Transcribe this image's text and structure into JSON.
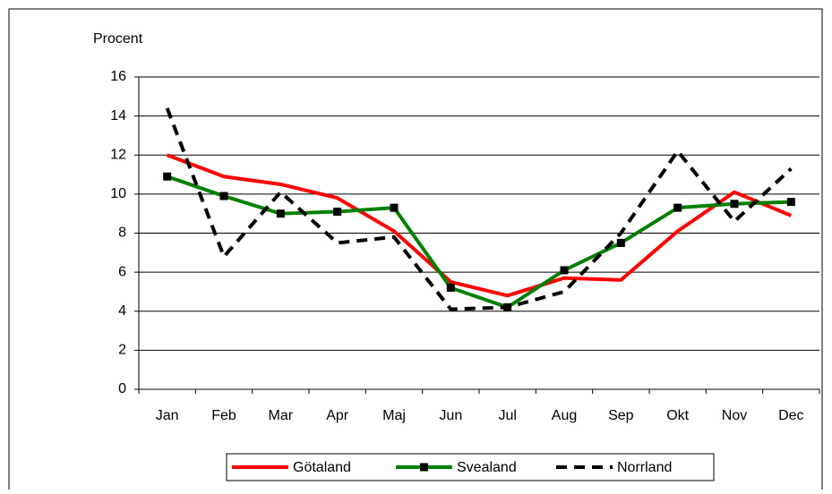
{
  "chart_data": {
    "type": "line",
    "y_label": "Procent",
    "categories": [
      "Jan",
      "Feb",
      "Mar",
      "Apr",
      "Maj",
      "Jun",
      "Jul",
      "Aug",
      "Sep",
      "Okt",
      "Nov",
      "Dec"
    ],
    "series": [
      {
        "name": "Götaland",
        "color": "#ff0000",
        "line_style": "solid",
        "values": [
          12.0,
          10.9,
          10.5,
          9.8,
          8.1,
          5.5,
          4.8,
          5.7,
          5.6,
          8.1,
          10.1,
          8.9
        ]
      },
      {
        "name": "Svealand",
        "color": "#008000",
        "line_style": "solid",
        "marker": "square",
        "values": [
          10.9,
          9.9,
          9.0,
          9.1,
          9.3,
          5.2,
          4.2,
          6.1,
          7.5,
          9.3,
          9.5,
          9.6
        ]
      },
      {
        "name": "Norrland",
        "color": "#000000",
        "line_style": "dashed",
        "values": [
          14.4,
          6.8,
          10.1,
          7.5,
          7.8,
          4.1,
          4.2,
          5.0,
          8.0,
          12.2,
          8.6,
          11.3
        ]
      }
    ],
    "ylim": [
      0,
      16
    ],
    "yticks": [
      0,
      2,
      4,
      6,
      8,
      10,
      12,
      14,
      16
    ],
    "grid": true,
    "legend": "bottom"
  }
}
